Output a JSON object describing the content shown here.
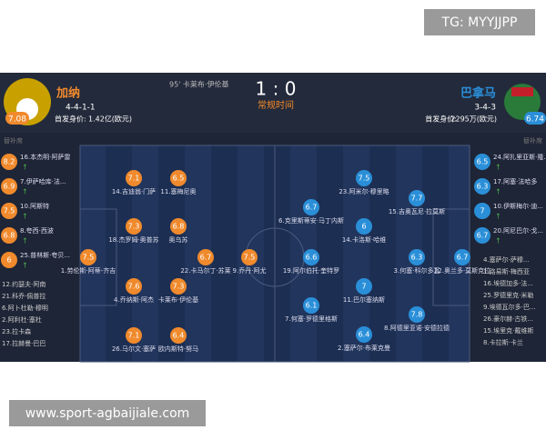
{
  "watermark": "TG: MYYJJPP",
  "footer": "www.sport-agbaijiale.com",
  "header": {
    "home": {
      "name": "加纳",
      "formation": "4-4-1-1",
      "value_label": "首发身价:",
      "value": "1.42亿(欧元)",
      "rating": "7.08"
    },
    "away": {
      "name": "巴拿马",
      "formation": "3-4-3",
      "value_label": "首发身价:",
      "value": "2295万(欧元)",
      "rating": "6.74"
    },
    "event": "95' 卡莱布·伊伦基",
    "score": "1 : 0",
    "status": "常规时间"
  },
  "bench_label": "替补席",
  "home_players": [
    {
      "rating": "7.5",
      "name": "1.劳伦斯·阿蒂-齐吉"
    },
    {
      "rating": "7.1",
      "name": "14.吉迪翁·门萨"
    },
    {
      "rating": "6.5",
      "name": "11.塞梅尼奥"
    },
    {
      "rating": "7.3",
      "name": "18.杰罗姆·奥普苏"
    },
    {
      "rating": "6.8",
      "name": "奥乌苏"
    },
    {
      "rating": "6.7",
      "name": "22.卡马尔丁·苏莱"
    },
    {
      "rating": "7.5",
      "name": "9.乔丹·阿尤"
    },
    {
      "rating": "7.6",
      "name": "4.乔纳斯·阿杰"
    },
    {
      "rating": "7.3",
      "name": "卡莱布·伊伦基"
    },
    {
      "rating": "7.1",
      "name": "26.马尔文·塞萨"
    },
    {
      "rating": "6.4",
      "name": "欧内斯特·努马"
    }
  ],
  "away_players": [
    {
      "rating": "6.7",
      "name": "22.奥兰多·莫斯克拉"
    },
    {
      "rating": "6.3",
      "name": "3.何塞·科尔多瓦"
    },
    {
      "rating": "7.7",
      "name": "15.吉奥瓦尼·拉莫斯"
    },
    {
      "rating": "7.8",
      "name": "8.阿德里亚诺·安德拉德"
    },
    {
      "rating": "7.5",
      "name": "23.阿米尔·穆里略"
    },
    {
      "rating": "6",
      "name": "14.卡洛斯·哈维"
    },
    {
      "rating": "7",
      "name": "11.巴尔塞纳斯"
    },
    {
      "rating": "6.4",
      "name": "2.塞萨尔·布莱克曼"
    },
    {
      "rating": "6.7",
      "name": "6.克里斯蒂安·马丁内斯"
    },
    {
      "rating": "6.6",
      "name": "19.阿尔伯托·奎特罗"
    },
    {
      "rating": "6.1",
      "name": "7.何塞·罗德里格斯"
    }
  ],
  "home_bench": [
    {
      "rating": "8.2",
      "name": "16.本杰明·阿萨雷"
    },
    {
      "rating": "6.9",
      "name": "7.伊萨哈库·法..."
    },
    {
      "rating": "7.5",
      "name": "10.阿斯特"
    },
    {
      "rating": "6.8",
      "name": "8.夸西·西波"
    },
    {
      "rating": "6",
      "name": "25.普林斯·夸贝..."
    },
    {
      "name": "12.约瑟夫·阿南"
    },
    {
      "name": "21.科乔·佩普拉"
    },
    {
      "name": "6.阿卜杜勒·穆明"
    },
    {
      "name": "2.阿利杜·塞杜"
    },
    {
      "name": "23.拉卡森"
    },
    {
      "name": "17.拉赫曼·巴巴"
    }
  ],
  "away_bench": [
    {
      "rating": "6.5",
      "name": "24.阿扎里亚斯·隆..."
    },
    {
      "rating": "6.3",
      "name": "17.阿塞·法哈多"
    },
    {
      "rating": "7",
      "name": "10.伊斯梅尔·迪..."
    },
    {
      "rating": "6.7",
      "name": "20.阿尼巴尔·戈..."
    },
    {
      "name": "4.塞萨尔·萨穆..."
    },
    {
      "name": "1.路易斯·梅西亚"
    },
    {
      "name": "16.埃德加多·法..."
    },
    {
      "name": "25.罗德里克·米勒"
    },
    {
      "name": "9.埃德瓦尔多·巴..."
    },
    {
      "name": "26.豪尔赫·古铁..."
    },
    {
      "name": "15.埃里克·戴维斯"
    },
    {
      "name": "8.卡拉斯·卡兰"
    }
  ]
}
